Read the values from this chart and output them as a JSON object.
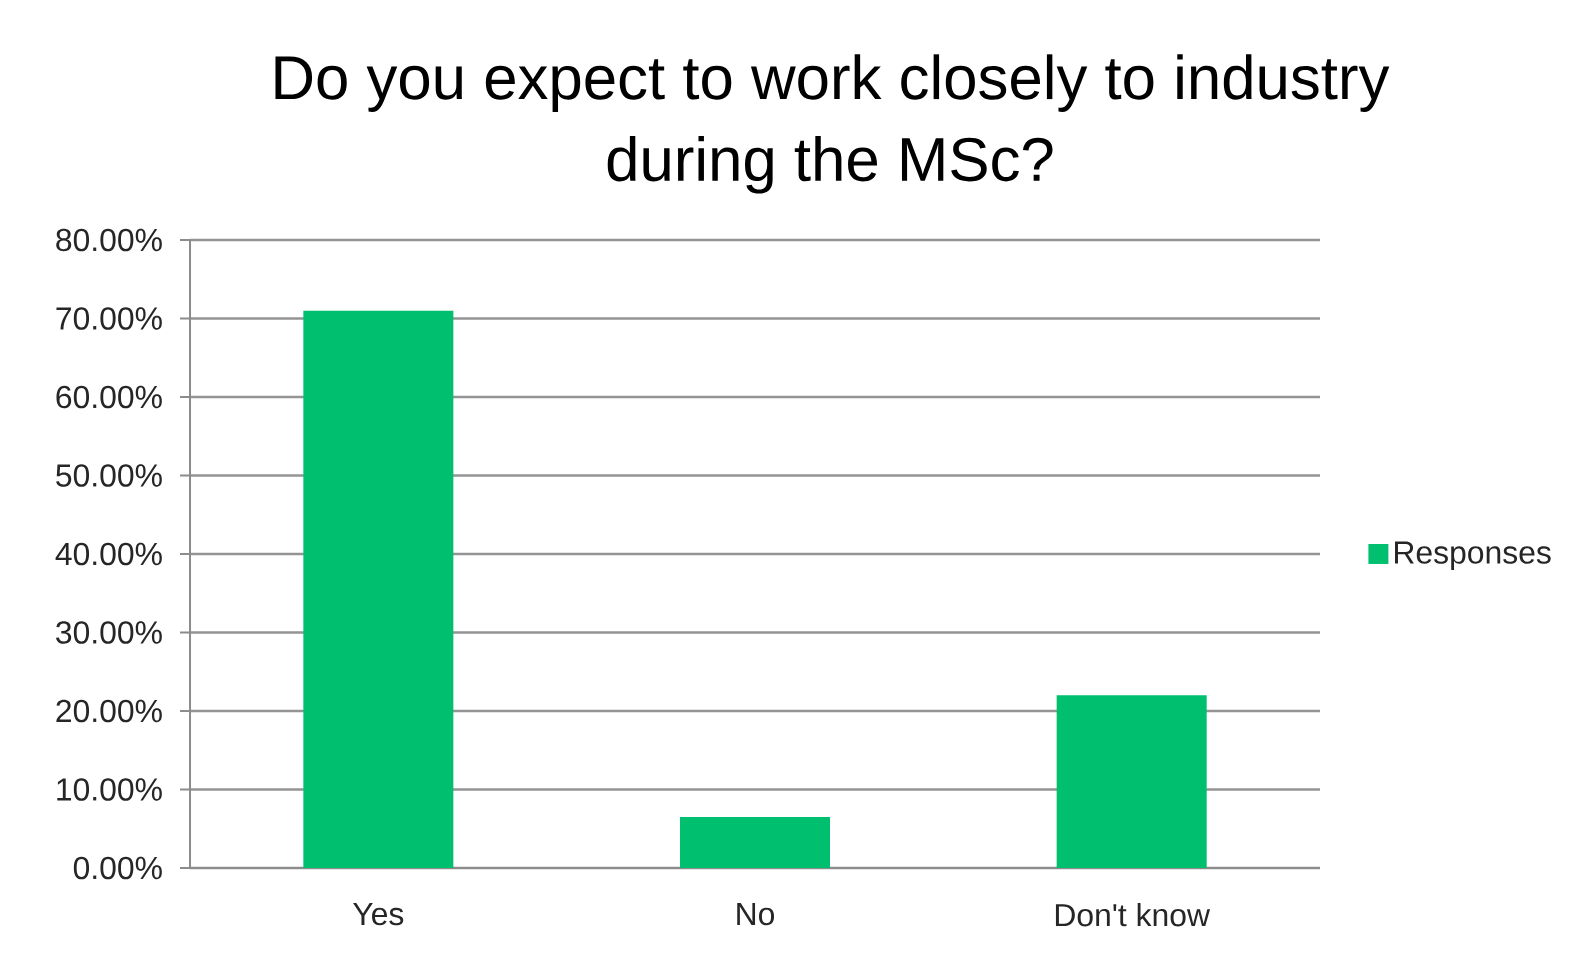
{
  "chart_data": {
    "type": "bar",
    "title": "Do you expect to work closely to industry during the MSc?",
    "categories": [
      "Yes",
      "No",
      "Don't know"
    ],
    "series": [
      {
        "name": "Responses",
        "color": "#00bf6f",
        "values": [
          71,
          6.5,
          22
        ]
      }
    ],
    "ylim": [
      0,
      80
    ],
    "yticks": [
      {
        "value": 0,
        "label": "0.00%"
      },
      {
        "value": 10,
        "label": "10.00%"
      },
      {
        "value": 20,
        "label": "20.00%"
      },
      {
        "value": 30,
        "label": "30.00%"
      },
      {
        "value": 40,
        "label": "40.00%"
      },
      {
        "value": 50,
        "label": "50.00%"
      },
      {
        "value": 60,
        "label": "60.00%"
      },
      {
        "value": 70,
        "label": "70.00%"
      },
      {
        "value": 80,
        "label": "80.00%"
      }
    ],
    "grid": "y",
    "legend": "right"
  }
}
